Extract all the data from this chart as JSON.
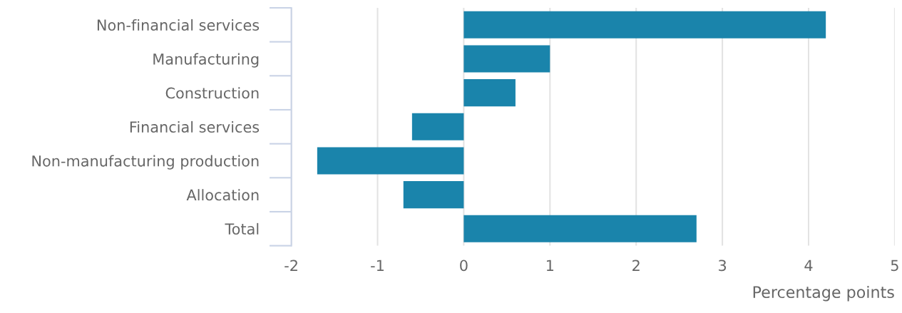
{
  "chart_data": {
    "type": "bar",
    "orientation": "horizontal",
    "categories": [
      "Non-financial services",
      "Manufacturing",
      "Construction",
      "Financial services",
      "Non-manufacturing production",
      "Allocation",
      "Total"
    ],
    "values": [
      4.2,
      1.0,
      0.6,
      -0.6,
      -1.7,
      -0.7,
      2.7
    ],
    "color": "#1a84ab",
    "xlim": [
      -2,
      5
    ],
    "xticks": [
      -2,
      -1,
      0,
      1,
      2,
      3,
      4,
      5
    ],
    "xlabel": "Percentage points",
    "grid": "x"
  }
}
